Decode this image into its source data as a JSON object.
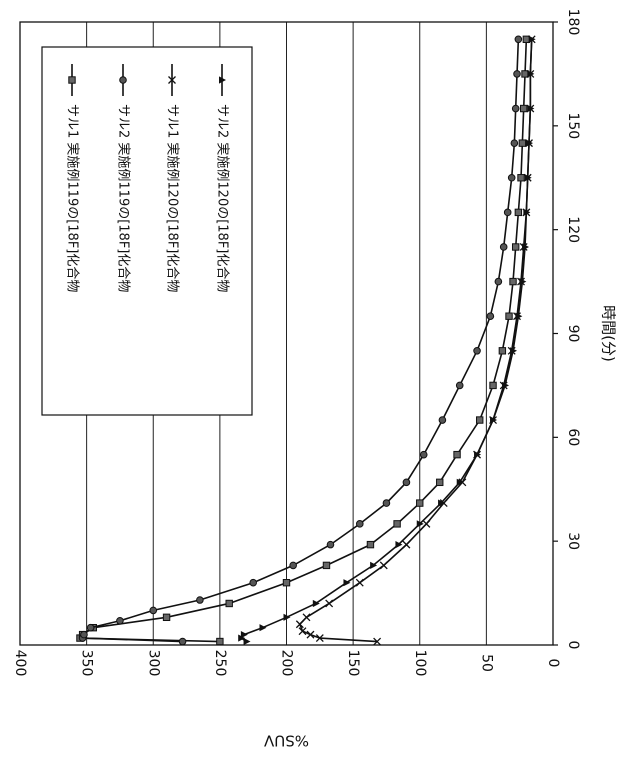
{
  "chart_data": {
    "type": "line",
    "xlabel": "時間(分)",
    "ylabel": "%SUV",
    "xlim": [
      0,
      180
    ],
    "ylim": [
      0,
      400
    ],
    "x_ticks": [
      "0",
      "30",
      "60",
      "90",
      "120",
      "150",
      "180"
    ],
    "y_ticks": [
      "0",
      "50",
      "100",
      "150",
      "200",
      "250",
      "300",
      "350",
      "400"
    ],
    "grid": true,
    "legend_position": "upper-right",
    "series": [
      {
        "name": "サル1 実施例119の[18F]化合物",
        "marker": "square",
        "x": [
          1,
          2,
          3,
          5,
          8,
          12,
          18,
          23,
          29,
          35,
          41,
          47,
          55,
          65,
          75,
          85,
          95,
          105,
          115,
          125,
          135,
          145,
          155,
          165,
          175
        ],
        "y": [
          250,
          355,
          353,
          345,
          290,
          243,
          200,
          170,
          137,
          117,
          100,
          85,
          72,
          55,
          45,
          38,
          33,
          30,
          28,
          26,
          24,
          23,
          22,
          21,
          20
        ]
      },
      {
        "name": "サル2 実施例119の[18F]化合物",
        "marker": "circle",
        "x": [
          1,
          2,
          3,
          5,
          7,
          10,
          13,
          18,
          23,
          29,
          35,
          41,
          47,
          55,
          65,
          75,
          85,
          95,
          105,
          115,
          125,
          135,
          145,
          155,
          165,
          175
        ],
        "y": [
          278,
          353,
          352,
          347,
          325,
          300,
          265,
          225,
          195,
          167,
          145,
          125,
          110,
          97,
          83,
          70,
          57,
          47,
          41,
          37,
          34,
          31,
          29,
          28,
          27,
          26
        ]
      },
      {
        "name": "サル1 実施例120の[18F]化合物",
        "marker": "x",
        "x": [
          1,
          2,
          3,
          4,
          6,
          8,
          12,
          18,
          23,
          29,
          35,
          41,
          47,
          55,
          65,
          75,
          85,
          95,
          105,
          115,
          125,
          135,
          145,
          155,
          165,
          175
        ],
        "y": [
          132,
          175,
          182,
          188,
          190,
          185,
          168,
          145,
          127,
          110,
          95,
          82,
          68,
          57,
          45,
          37,
          31,
          27,
          24,
          22,
          20,
          19,
          18,
          17,
          17,
          16
        ]
      },
      {
        "name": "サル2 実施例120の[18F]化合物",
        "marker": "triangle",
        "x": [
          1,
          2,
          3,
          5,
          8,
          12,
          18,
          23,
          29,
          35,
          41,
          47,
          55,
          65,
          75,
          85,
          95,
          105,
          115,
          125,
          135,
          145,
          155,
          165,
          175
        ],
        "y": [
          230,
          234,
          232,
          218,
          200,
          178,
          155,
          135,
          116,
          100,
          84,
          70,
          57,
          45,
          36,
          30,
          26,
          23,
          21,
          20,
          19,
          18,
          17,
          17,
          16
        ]
      }
    ]
  }
}
